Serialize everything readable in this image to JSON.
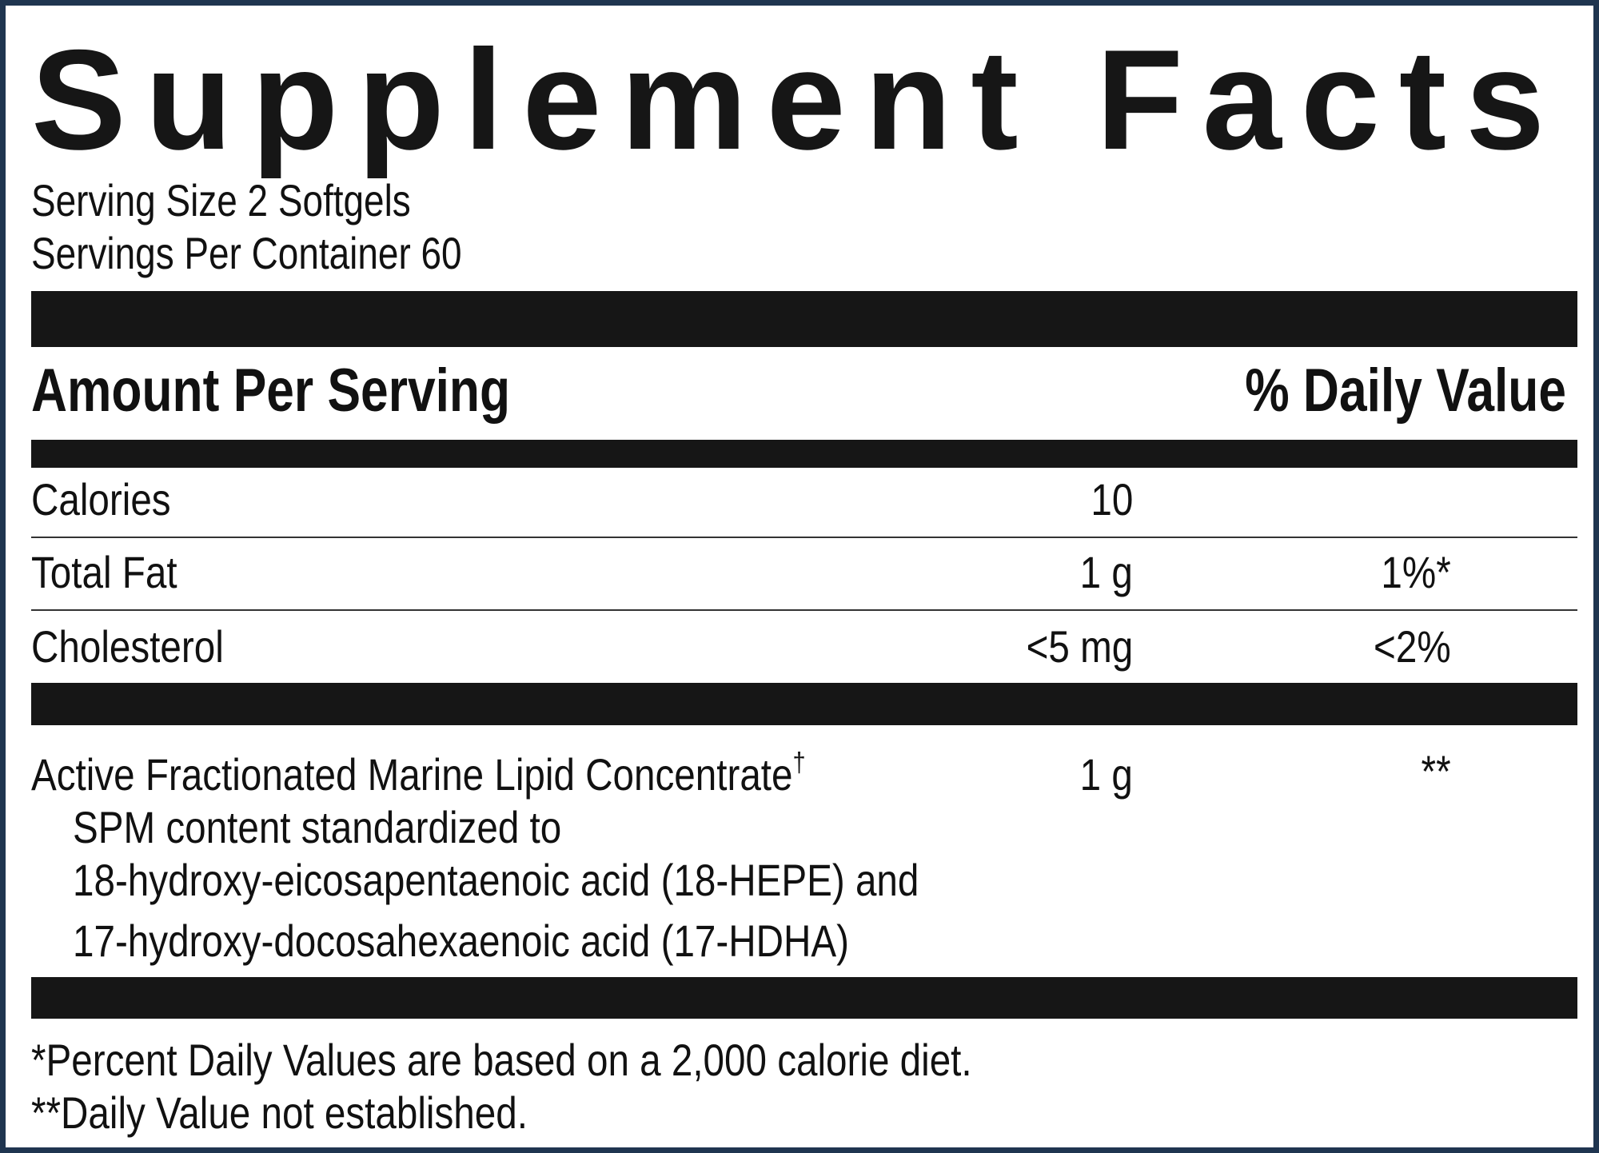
{
  "title": "Supplement Facts",
  "serving_size": "Serving Size 2 Softgels",
  "servings_per_container": "Servings Per Container 60",
  "header": {
    "amount_per_serving": "Amount Per Serving",
    "daily_value": "% Daily Value"
  },
  "rows": [
    {
      "name": "Calories",
      "amount": "10",
      "dv": ""
    },
    {
      "name": "Total Fat",
      "amount": "1 g",
      "dv": "1%*"
    },
    {
      "name": "Cholesterol",
      "amount": "<5 mg",
      "dv": "<2%"
    }
  ],
  "ingredient": {
    "name": "Active Fractionated Marine Lipid Concentrate",
    "mark": "†",
    "amount": "1 g",
    "dv": "**",
    "detail_lines": [
      "SPM content standardized to",
      "18-hydroxy-eicosapentaenoic acid (18-HEPE) and",
      "17-hydroxy-docosahexaenoic acid (17-HDHA)"
    ]
  },
  "footnotes": [
    "*Percent Daily Values are based on a 2,000 calorie diet.",
    "**Daily Value not established."
  ],
  "colors": {
    "border": "#1f3550",
    "ink": "#161616"
  }
}
